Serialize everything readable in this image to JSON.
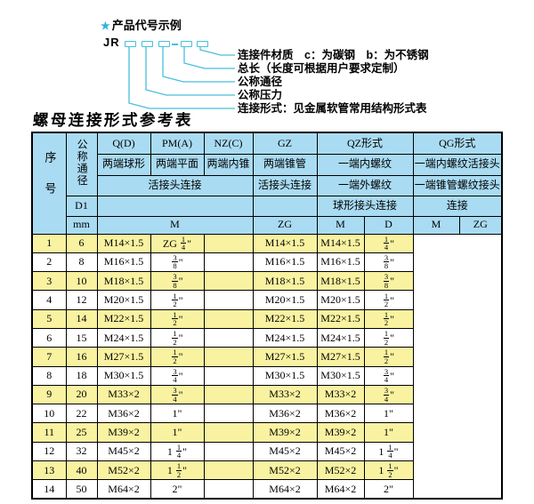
{
  "colors": {
    "header_blue": "#a9dbf2",
    "row_yellow": "#f8f2a1",
    "diagram_cyan": "#49bedd"
  },
  "diagram": {
    "star_icon": "★",
    "title": "产品代号示例",
    "code_prefix": "JR",
    "labels": [
      "连接件材质　c：为碳钢　b：为不锈钢",
      "总长（长度可根据用户要求定制）",
      "公称通径",
      "公称压力",
      "连接形式：见金属软管常用结构形式表"
    ]
  },
  "table": {
    "title": "螺母连接形式参考表",
    "header": {
      "serial": "序号",
      "nominal_diameter": "公称通径",
      "d1": "D1",
      "mm": "mm",
      "q_code": "Q(D)",
      "q_desc": "两端球形",
      "pm_code": "PM(A)",
      "pm_desc": "两端平面",
      "nz_code": "NZ(C)",
      "nz_desc": "两端内锥",
      "union_conn": "活接头连接",
      "gz_code": "GZ",
      "gz_desc": "两端锥管",
      "gz_conn": "活接头连接",
      "gz_unit": "ZG",
      "qz_code": "QZ形式",
      "qz_row2": "一端内螺纹",
      "qz_row3": "一端外螺纹",
      "qz_row4": "球形接头连接",
      "qz_unit_m": "M",
      "qz_unit_d": "D",
      "qg_code": "QG形式",
      "qg_row2": "一端内螺纹活接头",
      "qg_row3": "一端锥管螺纹接头",
      "qg_row4": "连接",
      "qg_unit_m": "M",
      "qg_unit_zg": "ZG",
      "m_unit": "M"
    },
    "rows": [
      {
        "no": "1",
        "mm": "6",
        "m": "M14×1.5",
        "gz": "ZG 1/4\"",
        "qz_m": "",
        "qz_d": "M14×1.5",
        "qg_m": "M14×1.5",
        "qg_zg": "1/4\""
      },
      {
        "no": "2",
        "mm": "8",
        "m": "M16×1.5",
        "gz": "3/8\"",
        "qz_m": "",
        "qz_d": "M16×1.5",
        "qg_m": "M16×1.5",
        "qg_zg": "3/8\""
      },
      {
        "no": "3",
        "mm": "10",
        "m": "M18×1.5",
        "gz": "3/8\"",
        "qz_m": "",
        "qz_d": "M18×1.5",
        "qg_m": "M18×1.5",
        "qg_zg": "3/8\""
      },
      {
        "no": "4",
        "mm": "12",
        "m": "M20×1.5",
        "gz": "1/2\"",
        "qz_m": "",
        "qz_d": "M20×1.5",
        "qg_m": "M20×1.5",
        "qg_zg": "1/2\""
      },
      {
        "no": "5",
        "mm": "14",
        "m": "M22×1.5",
        "gz": "1/2\"",
        "qz_m": "",
        "qz_d": "M22×1.5",
        "qg_m": "M22×1.5",
        "qg_zg": "1/2\""
      },
      {
        "no": "6",
        "mm": "15",
        "m": "M24×1.5",
        "gz": "1/2\"",
        "qz_m": "",
        "qz_d": "M24×1.5",
        "qg_m": "M24×1.5",
        "qg_zg": "1/2\""
      },
      {
        "no": "7",
        "mm": "16",
        "m": "M27×1.5",
        "gz": "1/2\"",
        "qz_m": "",
        "qz_d": "M27×1.5",
        "qg_m": "M27×1.5",
        "qg_zg": "1/2\""
      },
      {
        "no": "8",
        "mm": "18",
        "m": "M30×1.5",
        "gz": "3/4\"",
        "qz_m": "",
        "qz_d": "M30×1.5",
        "qg_m": "M30×1.5",
        "qg_zg": "3/4\""
      },
      {
        "no": "9",
        "mm": "20",
        "m": "M33×2",
        "gz": "3/4\"",
        "qz_m": "",
        "qz_d": "M33×2",
        "qg_m": "M33×2",
        "qg_zg": "3/4\""
      },
      {
        "no": "10",
        "mm": "22",
        "m": "M36×2",
        "gz": "1\"",
        "qz_m": "",
        "qz_d": "M36×2",
        "qg_m": "M36×2",
        "qg_zg": "1\""
      },
      {
        "no": "11",
        "mm": "25",
        "m": "M39×2",
        "gz": "1\"",
        "qz_m": "",
        "qz_d": "M39×2",
        "qg_m": "M39×2",
        "qg_zg": "1\""
      },
      {
        "no": "12",
        "mm": "32",
        "m": "M45×2",
        "gz": "1 1/4\"",
        "qz_m": "",
        "qz_d": "M45×2",
        "qg_m": "M45×2",
        "qg_zg": "1 1/4\""
      },
      {
        "no": "13",
        "mm": "40",
        "m": "M52×2",
        "gz": "1 1/2\"",
        "qz_m": "",
        "qz_d": "M52×2",
        "qg_m": "M52×2",
        "qg_zg": "1 1/2\""
      },
      {
        "no": "14",
        "mm": "50",
        "m": "M64×2",
        "gz": "2\"",
        "qz_m": "",
        "qz_d": "M64×2",
        "qg_m": "M64×2",
        "qg_zg": "2\""
      }
    ]
  }
}
